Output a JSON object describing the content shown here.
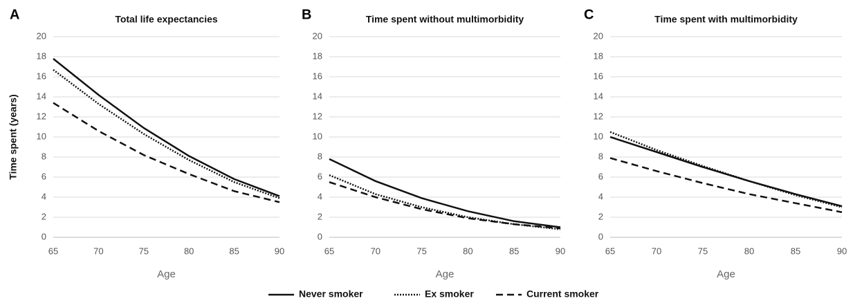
{
  "chart_data": [
    {
      "type": "line",
      "panel": "A",
      "title": "Total life expectancies",
      "xlabel": "Age",
      "ylabel": "Time spent (years)",
      "x": [
        65,
        70,
        75,
        80,
        85,
        90
      ],
      "xlim": [
        65,
        90
      ],
      "xticks": [
        65,
        70,
        75,
        80,
        85,
        90
      ],
      "ylim": [
        0,
        20
      ],
      "yticks": [
        0,
        2,
        4,
        6,
        8,
        10,
        12,
        14,
        16,
        18,
        20
      ],
      "grid": true,
      "series": [
        {
          "name": "Never smoker",
          "color": "#111111",
          "dash": "solid",
          "values": [
            17.8,
            14.2,
            10.9,
            8.1,
            5.8,
            4.1
          ]
        },
        {
          "name": "Ex smoker",
          "color": "#111111",
          "dash": "dotted",
          "values": [
            16.7,
            13.3,
            10.3,
            7.7,
            5.5,
            3.9
          ]
        },
        {
          "name": "Current smoker",
          "color": "#111111",
          "dash": "dashed",
          "values": [
            13.4,
            10.6,
            8.2,
            6.3,
            4.6,
            3.5
          ]
        }
      ]
    },
    {
      "type": "line",
      "panel": "B",
      "title": "Time spent without multimorbidity",
      "xlabel": "Age",
      "x": [
        65,
        70,
        75,
        80,
        85,
        90
      ],
      "xlim": [
        65,
        90
      ],
      "xticks": [
        65,
        70,
        75,
        80,
        85,
        90
      ],
      "ylim": [
        0,
        20
      ],
      "yticks": [
        0,
        2,
        4,
        6,
        8,
        10,
        12,
        14,
        16,
        18,
        20
      ],
      "grid": true,
      "series": [
        {
          "name": "Never smoker",
          "color": "#111111",
          "dash": "solid",
          "values": [
            7.8,
            5.6,
            3.9,
            2.6,
            1.6,
            1.0
          ]
        },
        {
          "name": "Ex smoker",
          "color": "#111111",
          "dash": "dotted",
          "values": [
            6.2,
            4.3,
            3.0,
            2.0,
            1.3,
            0.8
          ]
        },
        {
          "name": "Current smoker",
          "color": "#111111",
          "dash": "dashed",
          "values": [
            5.5,
            4.0,
            2.8,
            1.9,
            1.3,
            0.9
          ]
        }
      ]
    },
    {
      "type": "line",
      "panel": "C",
      "title": "Time spent with multimorbidity",
      "xlabel": "Age",
      "x": [
        65,
        70,
        75,
        80,
        85,
        90
      ],
      "xlim": [
        65,
        90
      ],
      "xticks": [
        65,
        70,
        75,
        80,
        85,
        90
      ],
      "ylim": [
        0,
        20
      ],
      "yticks": [
        0,
        2,
        4,
        6,
        8,
        10,
        12,
        14,
        16,
        18,
        20
      ],
      "grid": true,
      "series": [
        {
          "name": "Never smoker",
          "color": "#111111",
          "dash": "solid",
          "values": [
            10.0,
            8.5,
            7.0,
            5.6,
            4.3,
            3.1
          ]
        },
        {
          "name": "Ex smoker",
          "color": "#111111",
          "dash": "dotted",
          "values": [
            10.5,
            8.7,
            7.1,
            5.6,
            4.2,
            3.0
          ]
        },
        {
          "name": "Current smoker",
          "color": "#111111",
          "dash": "dashed",
          "values": [
            7.9,
            6.6,
            5.4,
            4.3,
            3.4,
            2.5
          ]
        }
      ]
    }
  ]
}
